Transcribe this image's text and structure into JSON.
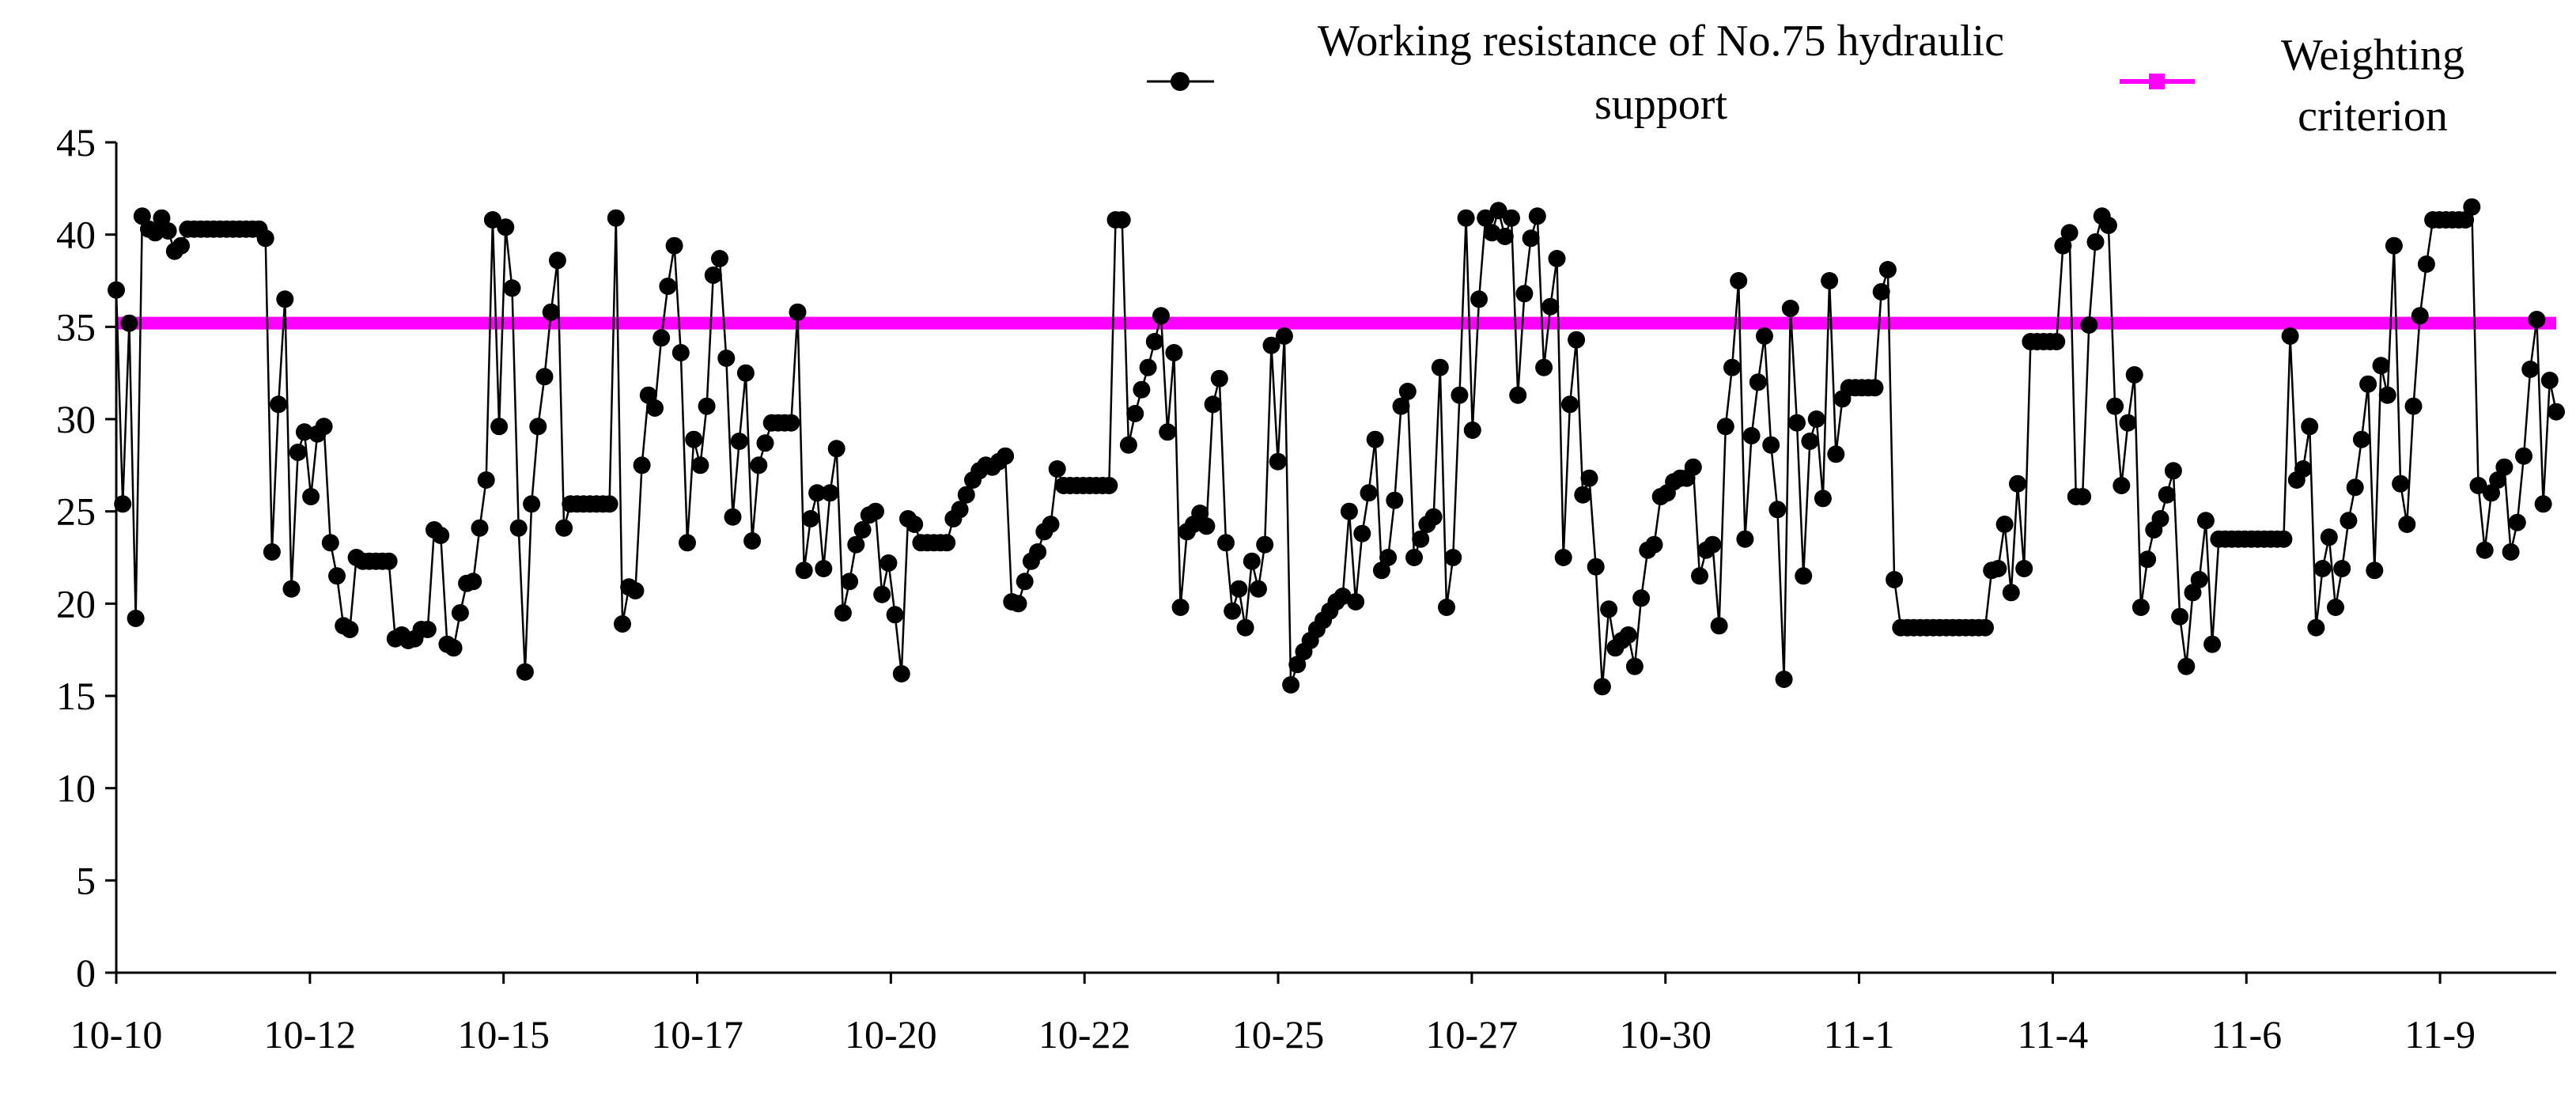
{
  "chart_data": {
    "type": "line",
    "x_tick_labels": [
      "10-10",
      "10-12",
      "10-15",
      "10-17",
      "10-20",
      "10-22",
      "10-25",
      "10-27",
      "10-30",
      "11-1",
      "11-4",
      "11-6",
      "11-9"
    ],
    "ylim": [
      0,
      45
    ],
    "y_ticks": [
      0,
      5,
      10,
      15,
      20,
      25,
      30,
      35,
      40,
      45
    ],
    "xlabel": "",
    "ylabel": "",
    "legend": {
      "placement": "top-right",
      "entries": [
        {
          "line1": "Working resistance of No.75 hydraulic",
          "line2": "support",
          "color": "#000000",
          "marker": "circle"
        },
        {
          "line1": "Weighting",
          "line2": "criterion",
          "color": "#ff00ff",
          "marker": "square"
        }
      ]
    },
    "series": [
      {
        "name": "Working resistance of No.75 hydraulic support",
        "color": "#000000",
        "x_range": [
          0,
          12.6
        ],
        "values": [
          37.0,
          25.4,
          35.2,
          19.2,
          41.0,
          40.3,
          40.1,
          40.9,
          40.2,
          39.1,
          39.4,
          40.3,
          40.3,
          40.3,
          40.3,
          40.3,
          40.3,
          40.3,
          40.3,
          40.3,
          40.3,
          40.3,
          40.3,
          39.8,
          22.8,
          30.8,
          36.5,
          20.8,
          28.2,
          29.3,
          25.8,
          29.2,
          29.6,
          23.3,
          21.5,
          18.8,
          18.6,
          22.5,
          22.3,
          22.3,
          22.3,
          22.3,
          22.3,
          18.1,
          18.3,
          18.0,
          18.1,
          18.6,
          18.6,
          24.0,
          23.7,
          17.8,
          17.6,
          19.5,
          21.1,
          21.2,
          24.1,
          26.7,
          40.8,
          29.6,
          40.4,
          37.1,
          24.1,
          16.3,
          25.4,
          29.6,
          32.3,
          35.8,
          38.6,
          24.1,
          25.4,
          25.4,
          25.4,
          25.4,
          25.4,
          25.4,
          25.4,
          40.9,
          18.9,
          20.9,
          20.7,
          27.5,
          31.3,
          30.6,
          34.4,
          37.2,
          39.4,
          33.6,
          23.3,
          28.9,
          27.5,
          30.7,
          37.8,
          38.7,
          33.3,
          24.7,
          28.8,
          32.5,
          23.4,
          27.5,
          28.7,
          29.8,
          29.8,
          29.8,
          29.8,
          35.8,
          21.8,
          24.6,
          26.0,
          21.9,
          26.0,
          28.4,
          19.5,
          21.2,
          23.2,
          24.0,
          24.8,
          25.0,
          20.5,
          22.2,
          19.4,
          16.2,
          24.6,
          24.3,
          23.3,
          23.3,
          23.3,
          23.3,
          23.3,
          24.6,
          25.1,
          25.9,
          26.7,
          27.2,
          27.5,
          27.4,
          27.7,
          28.0,
          20.1,
          20.0,
          21.2,
          22.3,
          22.8,
          23.9,
          24.3,
          27.3,
          26.4,
          26.4,
          26.4,
          26.4,
          26.4,
          26.4,
          26.4,
          26.4,
          40.8,
          40.8,
          28.6,
          30.3,
          31.6,
          32.8,
          34.2,
          35.6,
          29.3,
          33.6,
          19.8,
          23.9,
          24.3,
          24.9,
          24.2,
          30.8,
          32.2,
          23.3,
          19.6,
          20.8,
          18.7,
          22.3,
          20.8,
          23.2,
          34.0,
          27.7,
          34.5,
          15.6,
          16.7,
          17.4,
          18.0,
          18.6,
          19.1,
          19.6,
          20.1,
          20.4,
          25.0,
          20.1,
          23.8,
          26.0,
          28.9,
          21.8,
          22.5,
          25.6,
          30.7,
          31.5,
          22.5,
          23.5,
          24.3,
          24.7,
          32.8,
          19.8,
          22.5,
          31.3,
          40.9,
          29.4,
          36.5,
          40.9,
          40.1,
          41.3,
          39.9,
          40.9,
          31.3,
          36.8,
          39.8,
          41.0,
          32.8,
          36.1,
          38.7,
          22.5,
          30.8,
          34.3,
          25.9,
          26.8,
          22.0,
          15.5,
          19.7,
          17.6,
          18.0,
          18.3,
          16.6,
          20.3,
          22.9,
          23.2,
          25.8,
          26.0,
          26.6,
          26.8,
          26.8,
          27.4,
          21.5,
          22.9,
          23.2,
          18.8,
          29.6,
          32.8,
          37.5,
          23.5,
          29.1,
          32.0,
          34.5,
          28.6,
          25.1,
          15.9,
          36.0,
          29.8,
          21.5,
          28.8,
          30.0,
          25.7,
          37.5,
          28.1,
          31.1,
          31.7,
          31.7,
          31.7,
          31.7,
          31.7,
          36.9,
          38.1,
          21.3,
          18.7,
          18.7,
          18.7,
          18.7,
          18.7,
          18.7,
          18.7,
          18.7,
          18.7,
          18.7,
          18.7,
          18.7,
          18.7,
          18.7,
          21.8,
          21.9,
          24.3,
          20.6,
          26.5,
          21.9,
          34.2,
          34.2,
          34.2,
          34.2,
          34.2,
          39.4,
          40.1,
          25.8,
          25.8,
          35.1,
          39.6,
          41.0,
          40.5,
          30.7,
          26.4,
          29.8,
          32.4,
          19.8,
          22.4,
          24.0,
          24.6,
          25.9,
          27.2,
          19.3,
          16.6,
          20.6,
          21.3,
          24.5,
          17.8,
          23.5,
          23.5,
          23.5,
          23.5,
          23.5,
          23.5,
          23.5,
          23.5,
          23.5,
          23.5,
          23.5,
          34.5,
          26.7,
          27.3,
          29.6,
          18.7,
          21.9,
          23.6,
          19.8,
          21.9,
          24.5,
          26.3,
          28.9,
          31.9,
          21.8,
          32.9,
          31.3,
          39.4,
          26.5,
          24.3,
          30.7,
          35.6,
          38.4,
          40.8,
          40.8,
          40.8,
          40.8,
          40.8,
          40.8,
          41.5,
          26.4,
          22.9,
          26.0,
          26.7,
          27.4,
          22.8,
          24.4,
          28.0,
          32.7,
          35.4,
          25.4,
          32.1,
          30.4
        ]
      },
      {
        "name": "Weighting criterion",
        "color": "#ff00ff",
        "x_range": [
          0,
          12.6
        ],
        "values": [
          35.2,
          35.2
        ]
      }
    ]
  }
}
